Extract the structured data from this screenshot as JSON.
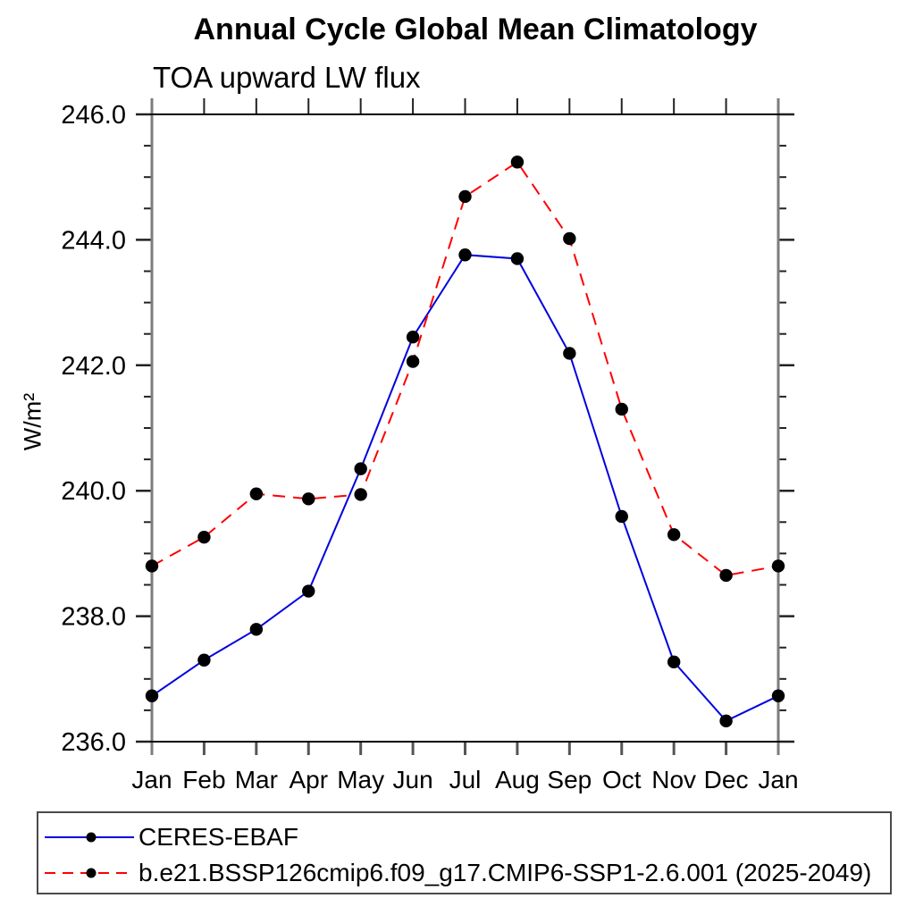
{
  "chart_data": {
    "type": "line",
    "title": "Annual Cycle Global Mean Climatology",
    "subtitle": "TOA upward LW flux",
    "ylabel": "W/m²",
    "x_tick_labels": [
      "Jan",
      "Feb",
      "Mar",
      "Apr",
      "May",
      "Jun",
      "Jul",
      "Aug",
      "Sep",
      "Oct",
      "Nov",
      "Dec",
      "Jan"
    ],
    "y_ticks": [
      236.0,
      238.0,
      240.0,
      242.0,
      244.0,
      246.0
    ],
    "y_tick_labels": [
      "236.0",
      "238.0",
      "240.0",
      "242.0",
      "244.0",
      "246.0"
    ],
    "y_minor_step": 0.5,
    "ylim": [
      236.0,
      246.0
    ],
    "grid": false,
    "legend_position": "bottom-left-box",
    "marker": "circle",
    "marker_color": "#000000",
    "series": [
      {
        "name": "CERES-EBAF",
        "color": "#0000e0",
        "line_style": "solid",
        "values": [
          236.73,
          237.3,
          237.79,
          238.4,
          240.35,
          242.45,
          243.76,
          243.7,
          242.19,
          239.59,
          237.27,
          236.33,
          236.73
        ]
      },
      {
        "name": "b.e21.BSSP126cmip6.f09_g17.CMIP6-SSP1-2.6.001 (2025-2049)",
        "color": "#ff0000",
        "line_style": "dashed",
        "values": [
          238.8,
          239.26,
          239.95,
          239.87,
          239.94,
          242.06,
          244.69,
          245.24,
          244.02,
          241.3,
          239.3,
          238.65,
          238.8
        ]
      }
    ]
  }
}
